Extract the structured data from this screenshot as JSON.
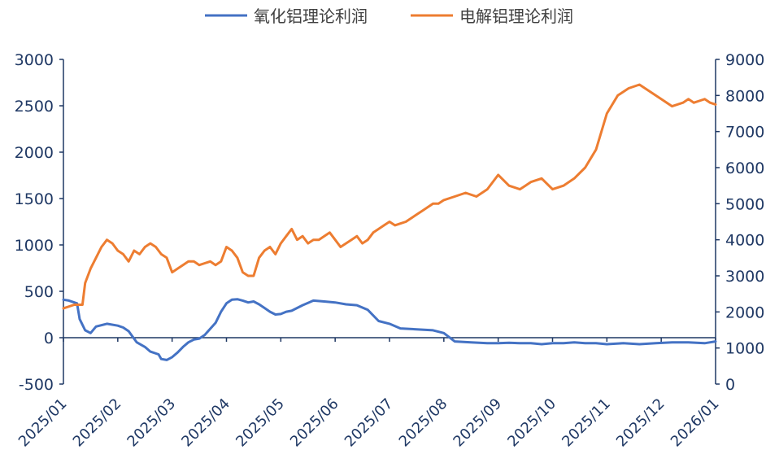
{
  "chart_data": {
    "type": "line",
    "legend_position": "top-center",
    "grid": false,
    "left_axis": {
      "min": -500,
      "max": 3000,
      "ticks": [
        -500,
        0,
        500,
        1000,
        1500,
        2000,
        2500,
        3000
      ],
      "tick_labels": [
        "-500",
        "0",
        "500",
        "1000",
        "1500",
        "2000",
        "2500",
        "3000"
      ]
    },
    "right_axis": {
      "min": 0,
      "max": 9000,
      "ticks": [
        0,
        1000,
        2000,
        3000,
        4000,
        5000,
        6000,
        7000,
        8000,
        9000
      ],
      "tick_labels": [
        "0",
        "1000",
        "2000",
        "3000",
        "4000",
        "5000",
        "6000",
        "7000",
        "8000",
        "9000"
      ]
    },
    "x_axis": {
      "ticks": [
        "2025/01",
        "2025/02",
        "2025/03",
        "2025/04",
        "2025/05",
        "2025/06",
        "2025/07",
        "2025/08",
        "2025/09",
        "2025/10",
        "2025/11",
        "2025/12",
        "2026/01"
      ]
    },
    "series": [
      {
        "name": "氧化铝理论利润",
        "axis": "left",
        "color": "#4472C4",
        "x": [
          0,
          0.1,
          0.2,
          0.25,
          0.3,
          0.4,
          0.5,
          0.6,
          0.8,
          1.0,
          1.1,
          1.2,
          1.35,
          1.5,
          1.6,
          1.75,
          1.8,
          1.9,
          2.0,
          2.1,
          2.2,
          2.3,
          2.4,
          2.5,
          2.6,
          2.8,
          2.9,
          3.0,
          3.1,
          3.2,
          3.3,
          3.4,
          3.5,
          3.6,
          3.7,
          3.8,
          3.9,
          4.0,
          4.1,
          4.2,
          4.4,
          4.6,
          4.8,
          5.0,
          5.2,
          5.4,
          5.6,
          5.8,
          6.0,
          6.2,
          6.5,
          6.8,
          7.0,
          7.2,
          7.5,
          7.8,
          8.0,
          8.2,
          8.4,
          8.6,
          8.8,
          9.0,
          9.2,
          9.4,
          9.6,
          9.8,
          10.0,
          10.3,
          10.6,
          10.9,
          11.2,
          11.5,
          11.8,
          11.9,
          12.0
        ],
        "y": [
          410,
          400,
          380,
          370,
          200,
          80,
          50,
          120,
          150,
          130,
          110,
          70,
          -50,
          -100,
          -150,
          -180,
          -230,
          -240,
          -210,
          -160,
          -100,
          -50,
          -20,
          -10,
          30,
          160,
          280,
          370,
          410,
          415,
          400,
          380,
          390,
          360,
          320,
          280,
          250,
          255,
          280,
          290,
          350,
          400,
          390,
          380,
          360,
          350,
          300,
          180,
          150,
          100,
          90,
          80,
          50,
          -40,
          -50,
          -60,
          -60,
          -55,
          -60,
          -60,
          -70,
          -60,
          -60,
          -50,
          -60,
          -60,
          -70,
          -60,
          -70,
          -60,
          -50,
          -50,
          -60,
          -50,
          -40
        ]
      },
      {
        "name": "电解铝理论利润",
        "axis": "right",
        "color": "#ED7D31",
        "x": [
          0,
          0.2,
          0.35,
          0.4,
          0.5,
          0.6,
          0.7,
          0.8,
          0.9,
          1.0,
          1.1,
          1.2,
          1.3,
          1.4,
          1.5,
          1.6,
          1.7,
          1.8,
          1.9,
          2.0,
          2.1,
          2.2,
          2.3,
          2.4,
          2.5,
          2.6,
          2.7,
          2.8,
          2.9,
          3.0,
          3.1,
          3.2,
          3.3,
          3.4,
          3.5,
          3.6,
          3.7,
          3.8,
          3.9,
          4.0,
          4.1,
          4.2,
          4.3,
          4.4,
          4.5,
          4.6,
          4.7,
          4.8,
          4.9,
          5.0,
          5.1,
          5.2,
          5.3,
          5.4,
          5.5,
          5.6,
          5.7,
          5.8,
          5.9,
          6.0,
          6.1,
          6.2,
          6.3,
          6.4,
          6.5,
          6.6,
          6.7,
          6.8,
          6.9,
          7.0,
          7.2,
          7.4,
          7.6,
          7.8,
          8.0,
          8.2,
          8.4,
          8.5,
          8.6,
          8.8,
          9.0,
          9.2,
          9.4,
          9.6,
          9.8,
          10.0,
          10.2,
          10.4,
          10.6,
          10.8,
          11.0,
          11.2,
          11.4,
          11.5,
          11.6,
          11.7,
          11.8,
          11.9,
          12.0
        ],
        "y": [
          2100,
          2200,
          2200,
          2800,
          3200,
          3500,
          3800,
          4000,
          3900,
          3700,
          3600,
          3400,
          3700,
          3600,
          3800,
          3900,
          3800,
          3600,
          3500,
          3100,
          3200,
          3300,
          3400,
          3400,
          3300,
          3350,
          3400,
          3300,
          3400,
          3800,
          3700,
          3500,
          3100,
          3000,
          3000,
          3500,
          3700,
          3800,
          3600,
          3900,
          4100,
          4300,
          4000,
          4100,
          3900,
          4000,
          4000,
          4100,
          4200,
          4000,
          3800,
          3900,
          4000,
          4100,
          3900,
          4000,
          4200,
          4300,
          4400,
          4500,
          4400,
          4450,
          4500,
          4600,
          4700,
          4800,
          4900,
          5000,
          5000,
          5100,
          5200,
          5300,
          5200,
          5400,
          5800,
          5500,
          5400,
          5500,
          5600,
          5700,
          5400,
          5500,
          5700,
          6000,
          6500,
          7500,
          8000,
          8200,
          8300,
          8100,
          7900,
          7700,
          7800,
          7900,
          7800,
          7850,
          7900,
          7800,
          7750
        ]
      }
    ]
  }
}
